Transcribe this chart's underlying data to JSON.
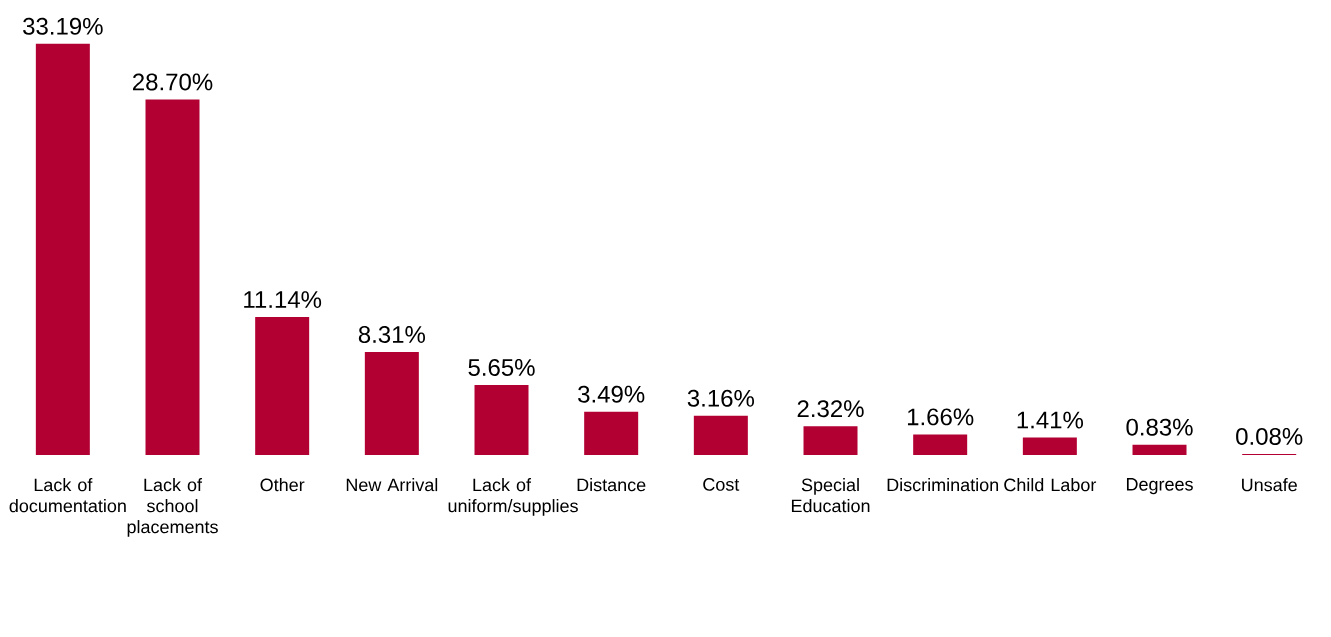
{
  "chart_data": {
    "type": "bar",
    "categories": [
      "Lack of documentation",
      "Lack of school placements",
      "Other",
      "New Arrival",
      "Lack of uniform/supplies",
      "Distance",
      "Cost",
      "Special Education",
      "Discrimination",
      "Child Labor",
      "Degrees",
      "Unsafe"
    ],
    "values": [
      33.19,
      28.7,
      11.14,
      8.31,
      5.65,
      3.49,
      3.16,
      2.32,
      1.66,
      1.41,
      0.83,
      0.08
    ],
    "value_labels": [
      "33.19%",
      "28.70%",
      "11.14%",
      "8.31%",
      "5.65%",
      "3.49%",
      "3.16%",
      "2.32%",
      "1.66%",
      "1.41%",
      "0.83%",
      "0.08%"
    ],
    "color": "#b20033"
  }
}
